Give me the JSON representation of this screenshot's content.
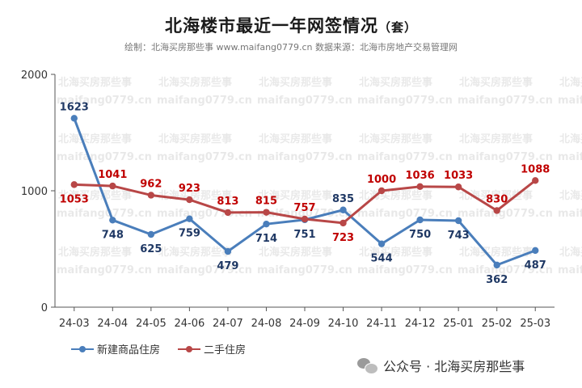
{
  "header": {
    "title": "北海楼市最近一年网签情况",
    "title_unit": "（套）",
    "subtitle": "绘制：北海买房那些事 www.maifang0779.cn  数据来源：北海市房地产交易管理网"
  },
  "watermark": {
    "line1": "北海买房那些事",
    "line2": "maifang0779.cn"
  },
  "footer": {
    "brand": "公众号 · 北海买房那些事",
    "icon": "wechat-icon"
  },
  "chart_data": {
    "type": "line",
    "categories": [
      "24-03",
      "24-04",
      "24-05",
      "24-06",
      "24-07",
      "24-08",
      "24-09",
      "24-10",
      "24-11",
      "24-12",
      "25-01",
      "25-02",
      "25-03"
    ],
    "yticks": [
      "0",
      "1000",
      "2000"
    ],
    "ylim": [
      0,
      2000
    ],
    "grid": false,
    "legend_position": "bottom-left",
    "series": [
      {
        "name": "新建商品住房",
        "color": "#4a7ebb",
        "label_color": "#1f3864",
        "values": [
          1623,
          748,
          625,
          759,
          479,
          714,
          751,
          835,
          544,
          750,
          743,
          362,
          487
        ],
        "labels": [
          "1623",
          "748",
          "625",
          "759",
          "479",
          "714",
          "751",
          "835",
          "544",
          "750",
          "743",
          "362",
          "487"
        ]
      },
      {
        "name": "二手住房",
        "color": "#b84747",
        "label_color": "#c00000",
        "values": [
          1053,
          1041,
          962,
          923,
          813,
          815,
          757,
          723,
          1000,
          1036,
          1033,
          830,
          1088
        ],
        "labels": [
          "1053",
          "1041",
          "962",
          "923",
          "813",
          "815",
          "757",
          "723",
          "1000",
          "1036",
          "1033",
          "830",
          "1088"
        ]
      }
    ]
  }
}
